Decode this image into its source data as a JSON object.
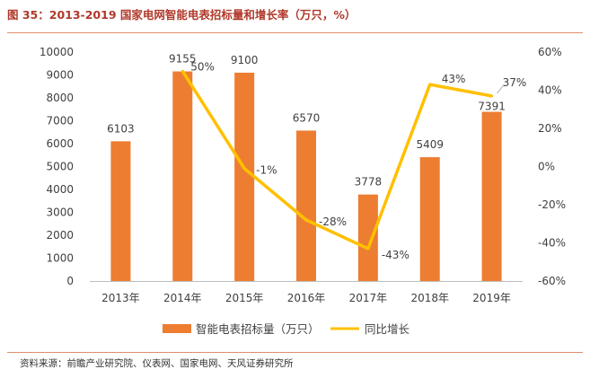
{
  "figure_title": "图 35：2013-2019 国家电网智能电表招标量和增长率（万只，%）",
  "source": "资料来源：前瞻产业研究院、仪表网、国家电网、天风证券研究所",
  "colors": {
    "bar": "#ed7d31",
    "line": "#ffc000",
    "title": "#b0392b"
  },
  "chart_data": {
    "type": "bar",
    "categories": [
      "2013年",
      "2014年",
      "2015年",
      "2016年",
      "2017年",
      "2018年",
      "2019年"
    ],
    "series": [
      {
        "name": "智能电表招标量（万只）",
        "type": "bar",
        "axis": "left",
        "values": [
          6103,
          9155,
          9100,
          6570,
          3778,
          5409,
          7391
        ],
        "labels": [
          "6103",
          "9155",
          "9100",
          "6570",
          "3778",
          "5409",
          "7391"
        ]
      },
      {
        "name": "同比增长",
        "type": "line",
        "axis": "right",
        "values": [
          null,
          50,
          -1,
          -28,
          -43,
          43,
          37
        ],
        "labels": [
          "",
          "50%",
          "-1%",
          "-28%",
          "-43%",
          "43%",
          "37%"
        ]
      }
    ],
    "y_left": {
      "min": 0,
      "max": 10000,
      "ticks": [
        "0",
        "1000",
        "2000",
        "3000",
        "4000",
        "5000",
        "6000",
        "7000",
        "8000",
        "9000",
        "10000"
      ]
    },
    "y_right": {
      "min": -60,
      "max": 60,
      "ticks": [
        "-60%",
        "-40%",
        "-20%",
        "0%",
        "20%",
        "40%",
        "60%"
      ]
    },
    "legend": [
      "智能电表招标量（万只）",
      "同比增长"
    ],
    "legend_position": "bottom"
  }
}
